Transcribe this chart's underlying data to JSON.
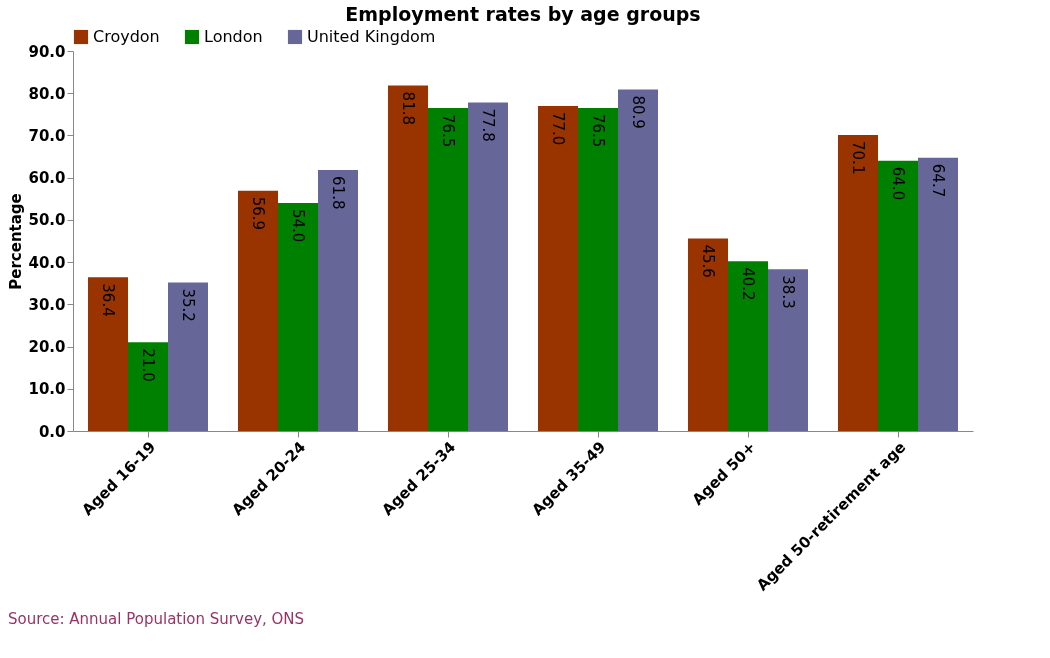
{
  "chart_data": {
    "type": "bar",
    "title": "Employment rates by age groups",
    "ylabel": "Percentage",
    "categories": [
      "Aged 16-19",
      "Aged 20-24",
      "Aged 25-34",
      "Aged 35-49",
      "Aged 50+",
      "Aged 50-retirement age"
    ],
    "series": [
      {
        "name": "Croydon",
        "color": "#993300",
        "values": [
          36.4,
          56.9,
          81.8,
          77.0,
          45.6,
          70.1
        ],
        "value_labels": [
          "36.4",
          "56.9",
          "81.8",
          "77.0",
          "45.6",
          "70.1"
        ]
      },
      {
        "name": "London",
        "color": "#008000",
        "values": [
          21.0,
          54.0,
          76.5,
          76.5,
          40.2,
          64.0
        ],
        "value_labels": [
          "21.0",
          "54.0",
          "76.5",
          "76.5",
          "40.2",
          "64.0"
        ]
      },
      {
        "name": "United Kingdom",
        "color": "#666699",
        "values": [
          35.2,
          61.8,
          77.8,
          80.9,
          38.3,
          64.7
        ],
        "value_labels": [
          "35.2",
          "61.8",
          "77.8",
          "80.9",
          "38.3",
          "64.7"
        ]
      }
    ],
    "ylim": [
      0,
      90
    ],
    "yticks": [
      {
        "value": 0,
        "label": "0.0"
      },
      {
        "value": 10,
        "label": "10.0"
      },
      {
        "value": 20,
        "label": "20.0"
      },
      {
        "value": 30,
        "label": "30.0"
      },
      {
        "value": 40,
        "label": "40.0"
      },
      {
        "value": 50,
        "label": "50.0"
      },
      {
        "value": 60,
        "label": "60.0"
      },
      {
        "value": 70,
        "label": "70.0"
      },
      {
        "value": 80,
        "label": "80.0"
      },
      {
        "value": 90,
        "label": "90.0"
      }
    ],
    "legend": "top",
    "grid": false,
    "annotations": [
      "Source: Annual Population Survey, ONS"
    ]
  }
}
